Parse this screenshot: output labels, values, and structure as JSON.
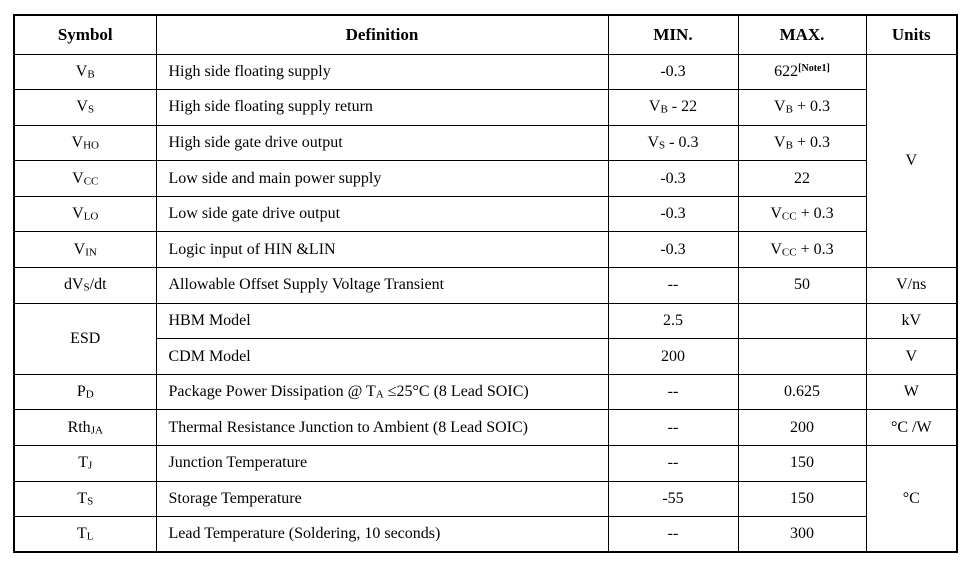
{
  "table": {
    "headers": {
      "symbol": "Symbol",
      "definition": "Definition",
      "min": "MIN.",
      "max": "MAX.",
      "units": "Units"
    },
    "rows": [
      {
        "symbol": [
          {
            "t": "V"
          },
          {
            "s": "B"
          }
        ],
        "definition": [
          {
            "t": "High side floating supply"
          }
        ],
        "min": [
          {
            "t": "-0.3"
          }
        ],
        "max": [
          {
            "t": "622"
          },
          {
            "p": "[Note1]"
          }
        ]
      },
      {
        "symbol": [
          {
            "t": "V"
          },
          {
            "s": "S"
          }
        ],
        "definition": [
          {
            "t": "High side floating supply return"
          }
        ],
        "min": [
          {
            "t": "V"
          },
          {
            "s": "B"
          },
          {
            "t": " - 22"
          }
        ],
        "max": [
          {
            "t": "V"
          },
          {
            "s": "B"
          },
          {
            "t": " + 0.3"
          }
        ]
      },
      {
        "symbol": [
          {
            "t": "V"
          },
          {
            "s": "HO"
          }
        ],
        "definition": [
          {
            "t": "High side gate drive output"
          }
        ],
        "min": [
          {
            "t": "V"
          },
          {
            "s": "S"
          },
          {
            "t": " - 0.3"
          }
        ],
        "max": [
          {
            "t": "V"
          },
          {
            "s": "B"
          },
          {
            "t": " + 0.3"
          }
        ]
      },
      {
        "symbol": [
          {
            "t": "V"
          },
          {
            "s": "CC"
          }
        ],
        "definition": [
          {
            "t": "Low side and main power supply"
          }
        ],
        "min": [
          {
            "t": "-0.3"
          }
        ],
        "max": [
          {
            "t": "22"
          }
        ]
      },
      {
        "symbol": [
          {
            "t": "V"
          },
          {
            "s": "LO"
          }
        ],
        "definition": [
          {
            "t": "Low side gate drive output"
          }
        ],
        "min": [
          {
            "t": "-0.3"
          }
        ],
        "max": [
          {
            "t": "V"
          },
          {
            "s": "CC"
          },
          {
            "t": " + 0.3"
          }
        ]
      },
      {
        "symbol": [
          {
            "t": "V"
          },
          {
            "s": "IN"
          }
        ],
        "definition": [
          {
            "t": "Logic input of HIN &LIN"
          }
        ],
        "min": [
          {
            "t": "-0.3"
          }
        ],
        "max": [
          {
            "t": "V"
          },
          {
            "s": "CC"
          },
          {
            "t": " + 0.3"
          }
        ]
      },
      {
        "symbol": [
          {
            "t": "dV"
          },
          {
            "s": "S"
          },
          {
            "t": "/dt"
          }
        ],
        "definition": [
          {
            "t": "Allowable Offset Supply Voltage Transient"
          }
        ],
        "min": [
          {
            "t": "--"
          }
        ],
        "max": [
          {
            "t": "50"
          }
        ]
      },
      {
        "symbol": [
          {
            "t": "ESD"
          }
        ],
        "definition": [
          {
            "t": "HBM Model"
          }
        ],
        "min": [
          {
            "t": "2.5"
          }
        ],
        "max": []
      },
      {
        "symbol": [],
        "definition": [
          {
            "t": "CDM Model"
          }
        ],
        "min": [
          {
            "t": "200"
          }
        ],
        "max": []
      },
      {
        "symbol": [
          {
            "t": "P"
          },
          {
            "s": "D"
          }
        ],
        "definition": [
          {
            "t": "Package Power Dissipation @ T"
          },
          {
            "s": "A"
          },
          {
            "t": " ≤25°C (8 Lead SOIC)"
          }
        ],
        "min": [
          {
            "t": "--"
          }
        ],
        "max": [
          {
            "t": "0.625"
          }
        ]
      },
      {
        "symbol": [
          {
            "t": "Rth"
          },
          {
            "s": "JA"
          }
        ],
        "definition": [
          {
            "t": "Thermal Resistance Junction to Ambient (8 Lead SOIC)"
          }
        ],
        "min": [
          {
            "t": "--"
          }
        ],
        "max": [
          {
            "t": "200"
          }
        ]
      },
      {
        "symbol": [
          {
            "t": "T"
          },
          {
            "s": "J"
          }
        ],
        "definition": [
          {
            "t": "Junction Temperature"
          }
        ],
        "min": [
          {
            "t": "--"
          }
        ],
        "max": [
          {
            "t": "150"
          }
        ]
      },
      {
        "symbol": [
          {
            "t": "T"
          },
          {
            "s": "S"
          }
        ],
        "definition": [
          {
            "t": "Storage Temperature"
          }
        ],
        "min": [
          {
            "t": "-55"
          }
        ],
        "max": [
          {
            "t": "150"
          }
        ]
      },
      {
        "symbol": [
          {
            "t": "T"
          },
          {
            "s": "L"
          }
        ],
        "definition": [
          {
            "t": "Lead Temperature (Soldering, 10 seconds)"
          }
        ],
        "min": [
          {
            "t": "--"
          }
        ],
        "max": [
          {
            "t": "300"
          }
        ]
      }
    ],
    "units_column": {
      "voltage_group": "V",
      "dvsdt": "V/ns",
      "esd_hbm": "kV",
      "esd_cdm": "V",
      "pd": "W",
      "rthja": "°C /W",
      "temperature_group": "°C"
    }
  }
}
